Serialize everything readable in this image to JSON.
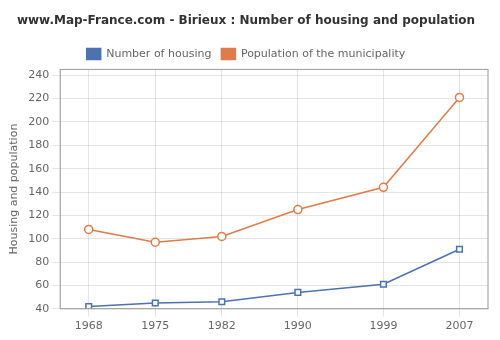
{
  "chart_data": {
    "type": "line",
    "title": "www.Map-France.com - Birieux : Number of housing and population",
    "ylabel": "Housing and population",
    "x": [
      1968,
      1975,
      1982,
      1990,
      1999,
      2007
    ],
    "series": [
      {
        "name": "Number of housing",
        "color": "#4c72b0",
        "marker": "square",
        "values": [
          42,
          45,
          46,
          54,
          61,
          91
        ]
      },
      {
        "name": "Population of the municipality",
        "color": "#e07b4a",
        "marker": "circle",
        "values": [
          108,
          97,
          102,
          125,
          144,
          221
        ]
      }
    ],
    "xlim": [
      1965,
      2010
    ],
    "xticks": [
      1968,
      1975,
      1982,
      1990,
      1999,
      2007
    ],
    "ylim": [
      40,
      245
    ],
    "yticks": [
      40,
      60,
      80,
      100,
      120,
      140,
      160,
      180,
      200,
      220,
      240
    ],
    "grid": true,
    "legend": "top"
  }
}
